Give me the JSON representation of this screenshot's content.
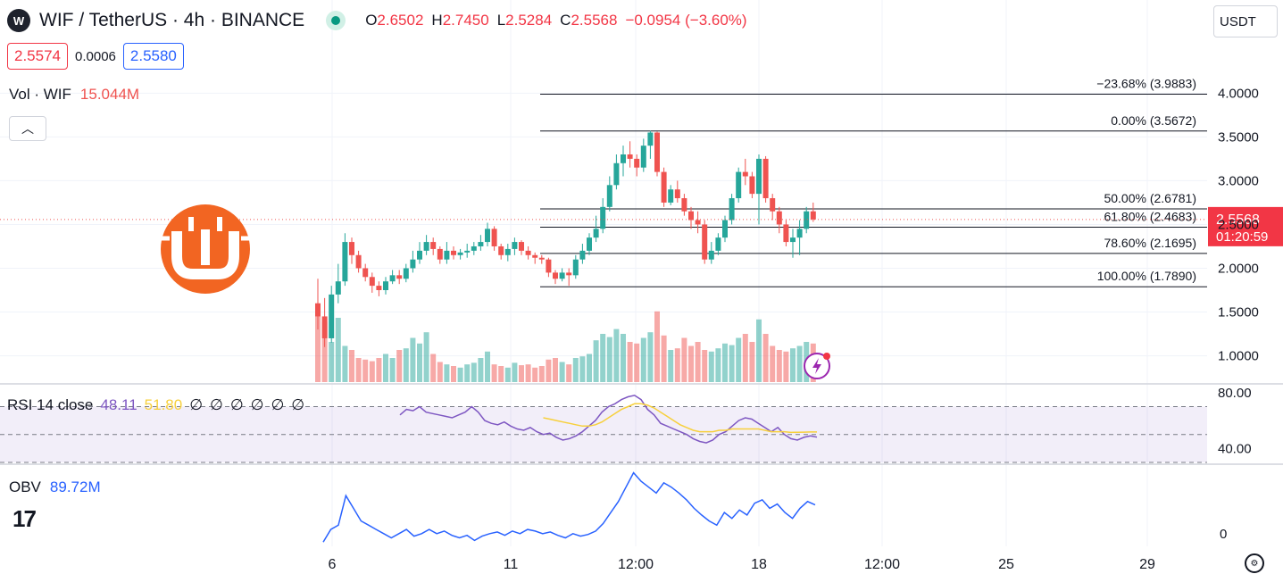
{
  "header": {
    "symbol_icon": "W",
    "title": "WIF / TetherUS · 4h · BINANCE",
    "open_label": "O",
    "open": "2.6502",
    "high_label": "H",
    "high": "2.7450",
    "low_label": "L",
    "low": "2.5284",
    "close_label": "C",
    "close": "2.5568",
    "change": "−0.0954 (−3.60%)",
    "live_color": "#089981"
  },
  "trade": {
    "sell": "2.5574",
    "spread": "0.0006",
    "buy": "2.5580"
  },
  "currency": "USDT",
  "volume": {
    "label": "Vol · WIF",
    "value": "15.044M"
  },
  "price_axis": {
    "ticks": [
      "4.0000",
      "3.5000",
      "3.0000",
      "2.5000",
      "2.0000",
      "1.5000",
      "1.0000"
    ],
    "last_price": "2.5568",
    "countdown": "01:20:59"
  },
  "time_axis": {
    "ticks": [
      "6",
      "11",
      "12:00",
      "18",
      "12:00",
      "25",
      "29"
    ]
  },
  "rsi": {
    "label": "RSI 14 close",
    "value": "48.11",
    "ma_value": "51.80",
    "placeholders": [
      "∅",
      "∅",
      "∅",
      "∅",
      "∅",
      "∅"
    ],
    "ticks": [
      "80.00",
      "40.00"
    ]
  },
  "obv": {
    "label": "OBV",
    "value": "89.72M",
    "ticks": [
      "0"
    ]
  },
  "icons": {
    "logo": "tradingview-logo-icon",
    "settings": "gear-icon",
    "collapse": "chevron-up-icon",
    "lightning": "lightning-icon",
    "watermark": "bitcoin-shop-logo-icon"
  },
  "colors": {
    "up": "#26a69a",
    "down": "#ef5350",
    "rsi": "#7e57c2",
    "rsi_ma": "#f7d03c",
    "obv": "#2962ff",
    "watermark": "#f26522"
  },
  "chart_data": [
    {
      "type": "candlestick",
      "title": "WIF / TetherUS · 4h · BINANCE",
      "ylim": [
        0.7,
        4.35
      ],
      "x_ticks": [
        "6",
        "11",
        "12:00",
        "18",
        "12:00",
        "25",
        "29"
      ],
      "fib_levels": [
        {
          "label": "−23.68% (3.9883)",
          "price": 3.9883
        },
        {
          "label": "0.00% (3.5672)",
          "price": 3.5672
        },
        {
          "label": "50.00% (2.6781)",
          "price": 2.6781
        },
        {
          "label": "61.80% (2.4683)",
          "price": 2.4683
        },
        {
          "label": "78.60% (2.1695)",
          "price": 2.1695
        },
        {
          "label": "100.00% (1.7890)",
          "price": 1.789
        }
      ],
      "candles": [
        [
          1.6,
          1.45,
          1.88,
          1.3
        ],
        [
          1.45,
          1.2,
          1.66,
          1.1
        ],
        [
          1.2,
          1.7,
          1.8,
          1.15
        ],
        [
          1.7,
          1.85,
          2.05,
          1.6
        ],
        [
          1.85,
          2.3,
          2.4,
          1.8
        ],
        [
          2.3,
          2.15,
          2.35,
          2.05
        ],
        [
          2.15,
          2.0,
          2.2,
          1.95
        ],
        [
          2.0,
          1.9,
          2.05,
          1.85
        ],
        [
          1.9,
          1.8,
          1.95,
          1.72
        ],
        [
          1.8,
          1.75,
          1.85,
          1.68
        ],
        [
          1.75,
          1.85,
          1.9,
          1.7
        ],
        [
          1.85,
          1.92,
          1.98,
          1.82
        ],
        [
          1.92,
          1.88,
          1.98,
          1.82
        ],
        [
          1.88,
          2.0,
          2.05,
          1.84
        ],
        [
          2.0,
          2.1,
          2.2,
          1.95
        ],
        [
          2.1,
          2.2,
          2.3,
          2.05
        ],
        [
          2.2,
          2.3,
          2.38,
          2.15
        ],
        [
          2.3,
          2.22,
          2.35,
          2.15
        ],
        [
          2.22,
          2.1,
          2.25,
          2.05
        ],
        [
          2.1,
          2.2,
          2.3,
          2.05
        ],
        [
          2.2,
          2.15,
          2.25,
          2.1
        ],
        [
          2.15,
          2.18,
          2.22,
          2.1
        ],
        [
          2.18,
          2.2,
          2.28,
          2.12
        ],
        [
          2.2,
          2.25,
          2.3,
          2.15
        ],
        [
          2.25,
          2.3,
          2.38,
          2.2
        ],
        [
          2.3,
          2.45,
          2.52,
          2.25
        ],
        [
          2.45,
          2.25,
          2.48,
          2.2
        ],
        [
          2.25,
          2.15,
          2.28,
          2.1
        ],
        [
          2.15,
          2.22,
          2.28,
          2.08
        ],
        [
          2.22,
          2.3,
          2.35,
          2.15
        ],
        [
          2.3,
          2.2,
          2.32,
          2.15
        ],
        [
          2.2,
          2.15,
          2.25,
          2.1
        ],
        [
          2.15,
          2.12,
          2.18,
          2.05
        ],
        [
          2.12,
          2.1,
          2.15,
          2.05
        ],
        [
          2.1,
          1.95,
          2.12,
          1.9
        ],
        [
          1.95,
          1.88,
          1.98,
          1.82
        ],
        [
          1.88,
          1.95,
          2.0,
          1.85
        ],
        [
          1.95,
          1.92,
          2.0,
          1.8
        ],
        [
          1.92,
          2.1,
          2.15,
          1.88
        ],
        [
          2.1,
          2.2,
          2.28,
          2.05
        ],
        [
          2.2,
          2.35,
          2.4,
          2.15
        ],
        [
          2.35,
          2.45,
          2.6,
          2.3
        ],
        [
          2.45,
          2.7,
          2.8,
          2.4
        ],
        [
          2.7,
          2.95,
          3.05,
          2.65
        ],
        [
          2.95,
          3.2,
          3.3,
          2.9
        ],
        [
          3.2,
          3.3,
          3.4,
          3.05
        ],
        [
          3.3,
          3.25,
          3.45,
          3.15
        ],
        [
          3.25,
          3.15,
          3.3,
          3.05
        ],
        [
          3.15,
          3.4,
          3.48,
          3.1
        ],
        [
          3.4,
          3.55,
          3.57,
          3.25
        ],
        [
          3.55,
          3.1,
          3.56,
          3.05
        ],
        [
          3.1,
          2.75,
          3.15,
          2.7
        ],
        [
          2.75,
          2.9,
          2.95,
          2.72
        ],
        [
          2.9,
          2.8,
          3.0,
          2.75
        ],
        [
          2.8,
          2.65,
          2.85,
          2.6
        ],
        [
          2.65,
          2.55,
          2.7,
          2.45
        ],
        [
          2.55,
          2.5,
          2.65,
          2.4
        ],
        [
          2.5,
          2.1,
          2.55,
          2.05
        ],
        [
          2.1,
          2.2,
          2.3,
          2.05
        ],
        [
          2.2,
          2.35,
          2.4,
          2.15
        ],
        [
          2.35,
          2.55,
          2.6,
          2.3
        ],
        [
          2.55,
          2.8,
          2.85,
          2.5
        ],
        [
          2.8,
          3.1,
          3.15,
          2.75
        ],
        [
          3.1,
          3.05,
          3.25,
          2.95
        ],
        [
          3.05,
          2.85,
          3.1,
          2.8
        ],
        [
          2.85,
          3.25,
          3.3,
          2.5
        ],
        [
          3.25,
          2.8,
          3.28,
          2.75
        ],
        [
          2.8,
          2.65,
          2.85,
          2.55
        ],
        [
          2.65,
          2.5,
          2.7,
          2.4
        ],
        [
          2.5,
          2.3,
          2.55,
          2.25
        ],
        [
          2.3,
          2.35,
          2.45,
          2.12
        ],
        [
          2.35,
          2.45,
          2.55,
          2.15
        ],
        [
          2.45,
          2.65,
          2.7,
          2.4
        ],
        [
          2.65,
          2.5568,
          2.75,
          2.53
        ]
      ],
      "volume": [
        0.9,
        0.75,
        0.5,
        0.8,
        0.45,
        0.4,
        0.3,
        0.28,
        0.26,
        0.3,
        0.35,
        0.3,
        0.4,
        0.42,
        0.55,
        0.48,
        0.62,
        0.35,
        0.25,
        0.22,
        0.2,
        0.18,
        0.22,
        0.24,
        0.3,
        0.38,
        0.22,
        0.2,
        0.18,
        0.24,
        0.21,
        0.22,
        0.18,
        0.2,
        0.28,
        0.3,
        0.25,
        0.22,
        0.3,
        0.32,
        0.35,
        0.52,
        0.6,
        0.56,
        0.66,
        0.6,
        0.5,
        0.48,
        0.55,
        0.62,
        0.88,
        0.58,
        0.4,
        0.42,
        0.55,
        0.45,
        0.5,
        0.4,
        0.38,
        0.42,
        0.48,
        0.46,
        0.55,
        0.6,
        0.5,
        0.78,
        0.6,
        0.45,
        0.4,
        0.38,
        0.42,
        0.45,
        0.5,
        0.48
      ]
    },
    {
      "type": "line",
      "title": "RSI 14 close",
      "ylim": [
        30,
        85
      ],
      "bands": [
        70,
        50,
        30
      ],
      "series": [
        {
          "name": "RSI",
          "values": [
            64,
            68,
            67,
            70,
            66,
            65,
            64,
            63,
            62,
            64,
            66,
            70,
            66,
            60,
            58,
            57,
            59,
            56,
            54,
            53,
            55,
            52,
            50,
            51,
            48,
            46,
            47,
            49,
            52,
            56,
            60,
            66,
            70,
            72,
            75,
            77,
            78,
            75,
            68,
            64,
            58,
            56,
            54,
            52,
            50,
            47,
            45,
            44,
            46,
            50,
            52,
            56,
            60,
            62,
            61,
            58,
            55,
            52,
            55,
            50,
            47,
            46,
            48,
            49,
            48.11
          ]
        },
        {
          "name": "MA",
          "values": [
            null,
            null,
            null,
            null,
            null,
            null,
            null,
            null,
            null,
            null,
            null,
            null,
            null,
            null,
            null,
            null,
            null,
            null,
            null,
            null,
            null,
            null,
            62,
            61,
            60,
            59,
            58,
            57,
            56,
            56,
            57,
            59,
            62,
            65,
            68,
            70,
            72,
            72,
            71,
            69,
            66,
            63,
            60,
            57,
            55,
            53,
            52,
            52,
            52,
            53,
            53,
            54,
            54,
            54,
            54,
            54,
            53,
            52,
            52,
            52,
            51.5,
            51.6,
            51.7,
            51.8,
            51.8
          ]
        }
      ]
    },
    {
      "type": "line",
      "title": "OBV",
      "series": [
        {
          "name": "OBV",
          "values": [
            -10,
            5,
            10,
            45,
            30,
            15,
            10,
            5,
            0,
            -5,
            0,
            5,
            -3,
            0,
            5,
            0,
            3,
            -2,
            -5,
            -2,
            -8,
            -3,
            0,
            2,
            -2,
            3,
            0,
            5,
            3,
            0,
            2,
            -2,
            -5,
            0,
            -3,
            -1,
            3,
            12,
            25,
            38,
            55,
            72,
            62,
            55,
            48,
            60,
            55,
            48,
            40,
            30,
            22,
            15,
            10,
            25,
            18,
            28,
            22,
            36,
            40,
            30,
            35,
            25,
            18,
            30,
            38,
            34
          ]
        }
      ]
    }
  ]
}
